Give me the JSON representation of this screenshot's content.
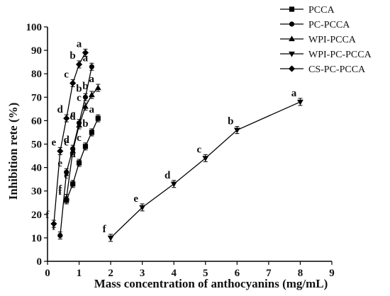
{
  "chart_data": {
    "type": "line",
    "xlabel": "Mass concentration of anthocyanins (mg/mL)",
    "ylabel": "Inhibition rete (%)",
    "xlim": [
      0,
      9
    ],
    "ylim": [
      0,
      100
    ],
    "xticks": [
      0,
      1,
      2,
      3,
      4,
      5,
      6,
      7,
      8,
      9
    ],
    "yticks": [
      0,
      10,
      20,
      30,
      40,
      50,
      60,
      70,
      80,
      90,
      100
    ],
    "grid": false,
    "legend_position": "top-right",
    "series": [
      {
        "name": "PCCA",
        "marker": "square",
        "x": [
          0.6,
          0.8,
          1.0,
          1.2,
          1.4,
          1.6
        ],
        "y": [
          26,
          33,
          42,
          49,
          55,
          61
        ],
        "labels": [
          "f",
          "e",
          "d",
          "c",
          "b",
          "a"
        ]
      },
      {
        "name": "PC-PCCA",
        "marker": "circle",
        "x": [
          0.4,
          0.6,
          0.8,
          1.0,
          1.2,
          1.4
        ],
        "y": [
          11,
          38,
          48,
          59,
          70,
          83
        ],
        "labels": [
          "f",
          "e",
          "d",
          "c",
          "b",
          "a"
        ]
      },
      {
        "name": "WPI-PCCA",
        "marker": "triangle-up",
        "x": [
          0.6,
          0.8,
          1.0,
          1.2,
          1.4,
          1.6
        ],
        "y": [
          27,
          47,
          58,
          66,
          71,
          74
        ],
        "labels": [
          "f",
          "e",
          "d",
          "c",
          "b",
          "a"
        ]
      },
      {
        "name": "WPI-PC-PCCA",
        "marker": "triangle-down",
        "x": [
          2,
          3,
          4,
          5,
          6,
          8
        ],
        "y": [
          10,
          23,
          33,
          44,
          56,
          68
        ],
        "labels": [
          "f",
          "e",
          "d",
          "c",
          "b",
          "a"
        ]
      },
      {
        "name": "CS-PC-PCCA",
        "marker": "diamond",
        "x": [
          0.2,
          0.4,
          0.6,
          0.8,
          1.0,
          1.2
        ],
        "y": [
          16,
          47,
          61,
          76,
          84,
          89
        ],
        "labels": [
          "f",
          "e",
          "d",
          "c",
          "b",
          "a"
        ]
      }
    ]
  }
}
